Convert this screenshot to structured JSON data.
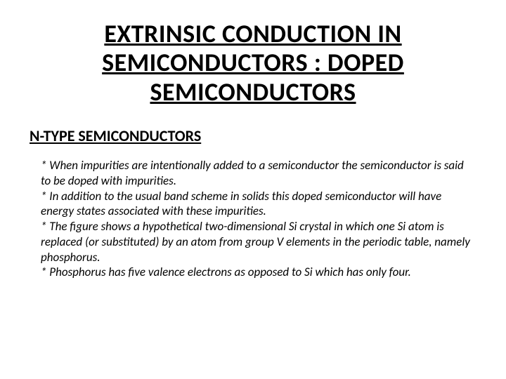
{
  "title": "EXTRINSIC CONDUCTION IN SEMICONDUCTORS : DOPED SEMICONDUCTORS",
  "subheading": "N-TYPE SEMICONDUCTORS",
  "bullets": {
    "b1": "* When impurities are intentionally added to a semiconductor the semiconductor is said to be doped with impurities.",
    "b2": "* In addition to the usual band scheme in solids this doped semiconductor will have energy states associated with these impurities.",
    "b3": "* The figure shows a hypothetical two-dimensional Si crystal in which one Si atom is replaced (or substituted) by an atom from group V elements in the periodic table, namely phosphorus.",
    "b4": "* Phosphorus has five valence electrons as opposed to Si which has only four."
  },
  "style": {
    "background_color": "#ffffff",
    "text_color": "#000000",
    "title_fontsize": 36,
    "subheading_fontsize": 22,
    "body_fontsize": 17,
    "font_family": "Calibri, Arial, sans-serif"
  }
}
